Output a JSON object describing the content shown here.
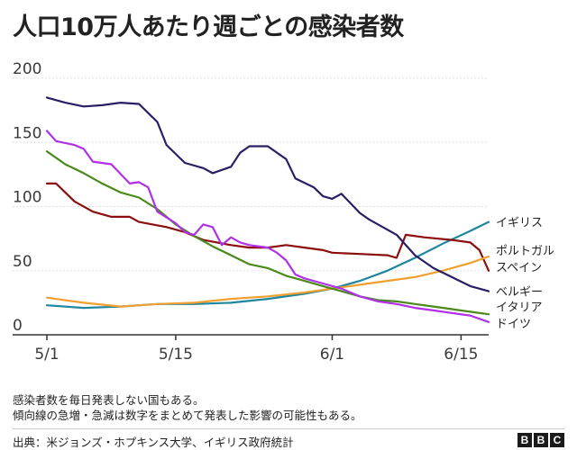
{
  "title": "人口10万人あたり週ごとの感染者数",
  "notes": [
    "感染者数を毎日発表しない国もある。",
    "傾向線の急増・急減は数字をまとめて発表した影響の可能性もある。"
  ],
  "source": "出典：米ジョンズ・ホプキンス大学、イギリス政府統計",
  "logo": [
    "B",
    "B",
    "C"
  ],
  "chart_data": {
    "type": "line",
    "title": "人口10万人あたり週ごとの感染者数",
    "xlabel": "",
    "ylabel": "",
    "xlim": [
      0,
      48
    ],
    "ylim": [
      0,
      200
    ],
    "yticks": [
      0,
      50,
      100,
      150,
      200
    ],
    "xticks": [
      {
        "day": 0,
        "label": "5/1"
      },
      {
        "day": 14,
        "label": "5/15"
      },
      {
        "day": 31,
        "label": "6/1"
      },
      {
        "day": 45,
        "label": "6/15"
      }
    ],
    "grid": true,
    "series": [
      {
        "name": "イギリス",
        "color": "#1f86a0",
        "values": [
          {
            "x": 0,
            "y": 23
          },
          {
            "x": 4,
            "y": 21
          },
          {
            "x": 8,
            "y": 22
          },
          {
            "x": 12,
            "y": 24
          },
          {
            "x": 16,
            "y": 24
          },
          {
            "x": 20,
            "y": 25
          },
          {
            "x": 24,
            "y": 28
          },
          {
            "x": 28,
            "y": 32
          },
          {
            "x": 31,
            "y": 36
          },
          {
            "x": 34,
            "y": 42
          },
          {
            "x": 37,
            "y": 50
          },
          {
            "x": 40,
            "y": 60
          },
          {
            "x": 43,
            "y": 71
          },
          {
            "x": 46,
            "y": 81
          },
          {
            "x": 48,
            "y": 88
          }
        ]
      },
      {
        "name": "ポルトガル",
        "color": "#8b0d0d",
        "values": [
          {
            "x": 0,
            "y": 118
          },
          {
            "x": 1,
            "y": 118
          },
          {
            "x": 3,
            "y": 104
          },
          {
            "x": 5,
            "y": 96
          },
          {
            "x": 7,
            "y": 92
          },
          {
            "x": 9,
            "y": 92
          },
          {
            "x": 10,
            "y": 88
          },
          {
            "x": 13,
            "y": 84
          },
          {
            "x": 15,
            "y": 80
          },
          {
            "x": 17,
            "y": 74
          },
          {
            "x": 20,
            "y": 70
          },
          {
            "x": 22,
            "y": 68
          },
          {
            "x": 24,
            "y": 68
          },
          {
            "x": 26,
            "y": 70
          },
          {
            "x": 28,
            "y": 68
          },
          {
            "x": 30,
            "y": 66
          },
          {
            "x": 31,
            "y": 64
          },
          {
            "x": 34,
            "y": 63
          },
          {
            "x": 37,
            "y": 62
          },
          {
            "x": 38,
            "y": 60
          },
          {
            "x": 39,
            "y": 78
          },
          {
            "x": 41,
            "y": 76
          },
          {
            "x": 44,
            "y": 74
          },
          {
            "x": 46,
            "y": 72
          },
          {
            "x": 47,
            "y": 66
          },
          {
            "x": 48,
            "y": 50
          }
        ]
      },
      {
        "name": "スペイン",
        "color": "#f0a030",
        "values": [
          {
            "x": 0,
            "y": 29
          },
          {
            "x": 4,
            "y": 25
          },
          {
            "x": 8,
            "y": 22
          },
          {
            "x": 12,
            "y": 24
          },
          {
            "x": 16,
            "y": 25
          },
          {
            "x": 20,
            "y": 28
          },
          {
            "x": 24,
            "y": 30
          },
          {
            "x": 28,
            "y": 33
          },
          {
            "x": 31,
            "y": 36
          },
          {
            "x": 34,
            "y": 39
          },
          {
            "x": 37,
            "y": 42
          },
          {
            "x": 40,
            "y": 45
          },
          {
            "x": 43,
            "y": 50
          },
          {
            "x": 46,
            "y": 56
          },
          {
            "x": 48,
            "y": 61
          }
        ]
      },
      {
        "name": "ベルギー",
        "color": "#2a1f66",
        "values": [
          {
            "x": 0,
            "y": 185
          },
          {
            "x": 2,
            "y": 181
          },
          {
            "x": 4,
            "y": 178
          },
          {
            "x": 6,
            "y": 179
          },
          {
            "x": 8,
            "y": 181
          },
          {
            "x": 10,
            "y": 180
          },
          {
            "x": 12,
            "y": 166
          },
          {
            "x": 13,
            "y": 148
          },
          {
            "x": 15,
            "y": 134
          },
          {
            "x": 17,
            "y": 130
          },
          {
            "x": 18,
            "y": 126
          },
          {
            "x": 20,
            "y": 131
          },
          {
            "x": 21,
            "y": 142
          },
          {
            "x": 22,
            "y": 147
          },
          {
            "x": 24,
            "y": 147
          },
          {
            "x": 26,
            "y": 137
          },
          {
            "x": 27,
            "y": 122
          },
          {
            "x": 29,
            "y": 115
          },
          {
            "x": 30,
            "y": 108
          },
          {
            "x": 31,
            "y": 106
          },
          {
            "x": 32,
            "y": 110
          },
          {
            "x": 34,
            "y": 95
          },
          {
            "x": 35,
            "y": 90
          },
          {
            "x": 38,
            "y": 78
          },
          {
            "x": 40,
            "y": 62
          },
          {
            "x": 42,
            "y": 52
          },
          {
            "x": 44,
            "y": 45
          },
          {
            "x": 46,
            "y": 38
          },
          {
            "x": 48,
            "y": 34
          }
        ]
      },
      {
        "name": "イタリア",
        "color": "#4a8a1a",
        "values": [
          {
            "x": 0,
            "y": 143
          },
          {
            "x": 2,
            "y": 133
          },
          {
            "x": 4,
            "y": 126
          },
          {
            "x": 6,
            "y": 118
          },
          {
            "x": 8,
            "y": 111
          },
          {
            "x": 10,
            "y": 107
          },
          {
            "x": 12,
            "y": 98
          },
          {
            "x": 14,
            "y": 86
          },
          {
            "x": 16,
            "y": 77
          },
          {
            "x": 18,
            "y": 69
          },
          {
            "x": 20,
            "y": 62
          },
          {
            "x": 22,
            "y": 55
          },
          {
            "x": 24,
            "y": 52
          },
          {
            "x": 26,
            "y": 46
          },
          {
            "x": 28,
            "y": 42
          },
          {
            "x": 30,
            "y": 38
          },
          {
            "x": 32,
            "y": 34
          },
          {
            "x": 34,
            "y": 30
          },
          {
            "x": 36,
            "y": 27
          },
          {
            "x": 38,
            "y": 26
          },
          {
            "x": 40,
            "y": 24
          },
          {
            "x": 42,
            "y": 22
          },
          {
            "x": 44,
            "y": 20
          },
          {
            "x": 46,
            "y": 18
          },
          {
            "x": 48,
            "y": 16
          }
        ]
      },
      {
        "name": "ドイツ",
        "color": "#b030e8",
        "values": [
          {
            "x": 0,
            "y": 159
          },
          {
            "x": 1,
            "y": 151
          },
          {
            "x": 3,
            "y": 148
          },
          {
            "x": 4,
            "y": 145
          },
          {
            "x": 5,
            "y": 135
          },
          {
            "x": 7,
            "y": 133
          },
          {
            "x": 9,
            "y": 118
          },
          {
            "x": 10,
            "y": 119
          },
          {
            "x": 11,
            "y": 115
          },
          {
            "x": 12,
            "y": 96
          },
          {
            "x": 14,
            "y": 87
          },
          {
            "x": 15,
            "y": 80
          },
          {
            "x": 16,
            "y": 78
          },
          {
            "x": 17,
            "y": 86
          },
          {
            "x": 18,
            "y": 84
          },
          {
            "x": 19,
            "y": 70
          },
          {
            "x": 20,
            "y": 76
          },
          {
            "x": 21,
            "y": 72
          },
          {
            "x": 22,
            "y": 70
          },
          {
            "x": 24,
            "y": 68
          },
          {
            "x": 25,
            "y": 64
          },
          {
            "x": 26,
            "y": 58
          },
          {
            "x": 27,
            "y": 47
          },
          {
            "x": 28,
            "y": 44
          },
          {
            "x": 30,
            "y": 40
          },
          {
            "x": 32,
            "y": 36
          },
          {
            "x": 34,
            "y": 30
          },
          {
            "x": 36,
            "y": 26
          },
          {
            "x": 38,
            "y": 24
          },
          {
            "x": 40,
            "y": 21
          },
          {
            "x": 42,
            "y": 19
          },
          {
            "x": 44,
            "y": 17
          },
          {
            "x": 46,
            "y": 15
          },
          {
            "x": 48,
            "y": 10
          }
        ]
      }
    ],
    "legend": [
      {
        "text": "イギリス",
        "series": "イギリス",
        "y": 88
      },
      {
        "text": "ポルトガル",
        "series": "ポルトガル",
        "y": 66
      },
      {
        "text": "スペイン",
        "series": "スペイン",
        "y": 53
      },
      {
        "text": "ベルギー",
        "series": "ベルギー",
        "y": 34
      },
      {
        "text": "イタリア",
        "series": "イタリア",
        "y": 22
      },
      {
        "text": "ドイツ",
        "series": "ドイツ",
        "y": 9
      }
    ]
  }
}
